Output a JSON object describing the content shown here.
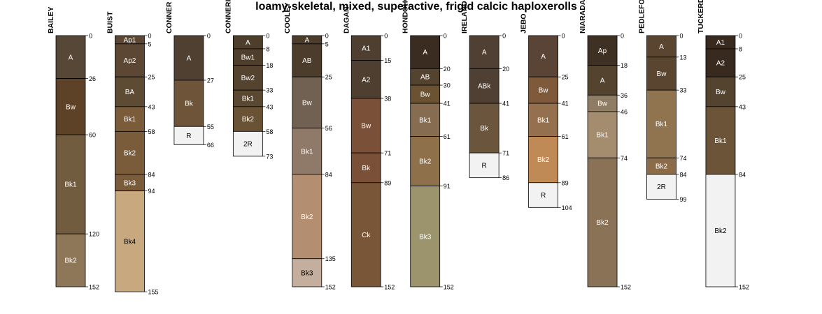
{
  "chart_data": {
    "type": "soil-profile",
    "title": "loamy-skeletal, mixed, superactive, frigid calcic haploxerolls",
    "depth_unit": "cm",
    "profiles": [
      {
        "name": "BAILEY",
        "horizons": [
          {
            "name": "A",
            "top": 0,
            "bottom": 26,
            "color": "#574737"
          },
          {
            "name": "Bw",
            "top": 26,
            "bottom": 60,
            "color": "#5E4227"
          },
          {
            "name": "Bk1",
            "top": 60,
            "bottom": 120,
            "color": "#725C40"
          },
          {
            "name": "Bk2",
            "top": 120,
            "bottom": 152,
            "color": "#8E7759"
          }
        ]
      },
      {
        "name": "BUIST",
        "horizons": [
          {
            "name": "Ap1",
            "top": 0,
            "bottom": 5,
            "color": "#5C4634"
          },
          {
            "name": "Ap2",
            "top": 5,
            "bottom": 25,
            "color": "#5C4634"
          },
          {
            "name": "BA",
            "top": 25,
            "bottom": 43,
            "color": "#5E4B33"
          },
          {
            "name": "Bk1",
            "top": 43,
            "bottom": 58,
            "color": "#7A5C3B"
          },
          {
            "name": "Bk2",
            "top": 58,
            "bottom": 84,
            "color": "#7A5C3B"
          },
          {
            "name": "Bk3",
            "top": 84,
            "bottom": 94,
            "color": "#7A5C3B"
          },
          {
            "name": "Bk4",
            "top": 94,
            "bottom": 155,
            "color": "#C8A87E"
          }
        ]
      },
      {
        "name": "CONNER",
        "horizons": [
          {
            "name": "A",
            "top": 0,
            "bottom": 27,
            "color": "#504032"
          },
          {
            "name": "Bk",
            "top": 27,
            "bottom": 55,
            "color": "#6E5539"
          },
          {
            "name": "R",
            "top": 55,
            "bottom": 66,
            "color": "#F2F2F2"
          }
        ]
      },
      {
        "name": "CONNERIDGE",
        "horizons": [
          {
            "name": "A",
            "top": 0,
            "bottom": 8,
            "color": "#4E3E2C"
          },
          {
            "name": "Bw1",
            "top": 8,
            "bottom": 18,
            "color": "#4E3E2C"
          },
          {
            "name": "Bw2",
            "top": 18,
            "bottom": 33,
            "color": "#54432F"
          },
          {
            "name": "Bk1",
            "top": 33,
            "bottom": 43,
            "color": "#5A4831"
          },
          {
            "name": "Bk2",
            "top": 43,
            "bottom": 58,
            "color": "#6A5235"
          },
          {
            "name": "2R",
            "top": 58,
            "bottom": 73,
            "color": "#F2F2F2"
          }
        ]
      },
      {
        "name": "COOLEY",
        "horizons": [
          {
            "name": "A",
            "top": 0,
            "bottom": 5,
            "color": "#4C3C2C"
          },
          {
            "name": "AB",
            "top": 5,
            "bottom": 25,
            "color": "#4C3C2C"
          },
          {
            "name": "Bw",
            "top": 25,
            "bottom": 56,
            "color": "#716152"
          },
          {
            "name": "Bk1",
            "top": 56,
            "bottom": 84,
            "color": "#8F7A6A"
          },
          {
            "name": "Bk2",
            "top": 84,
            "bottom": 135,
            "color": "#B38E70"
          },
          {
            "name": "Bk3",
            "top": 135,
            "bottom": 152,
            "color": "#C4AE9D"
          }
        ]
      },
      {
        "name": "DAGAN",
        "horizons": [
          {
            "name": "A1",
            "top": 0,
            "bottom": 15,
            "color": "#4E3F30"
          },
          {
            "name": "A2",
            "top": 15,
            "bottom": 38,
            "color": "#4E3F30"
          },
          {
            "name": "Bw",
            "top": 38,
            "bottom": 71,
            "color": "#7A5038"
          },
          {
            "name": "Bk",
            "top": 71,
            "bottom": 89,
            "color": "#7A5038"
          },
          {
            "name": "Ck",
            "top": 89,
            "bottom": 152,
            "color": "#7A5638"
          }
        ]
      },
      {
        "name": "HONDOHO",
        "horizons": [
          {
            "name": "A",
            "top": 0,
            "bottom": 20,
            "color": "#3A2C20"
          },
          {
            "name": "AB",
            "top": 20,
            "bottom": 30,
            "color": "#54442F"
          },
          {
            "name": "Bw",
            "top": 30,
            "bottom": 41,
            "color": "#6A5233"
          },
          {
            "name": "Bk1",
            "top": 41,
            "bottom": 61,
            "color": "#866C50"
          },
          {
            "name": "Bk2",
            "top": 61,
            "bottom": 91,
            "color": "#8E704A"
          },
          {
            "name": "Bk3",
            "top": 91,
            "bottom": 152,
            "color": "#9C946C"
          }
        ]
      },
      {
        "name": "IRELAND",
        "horizons": [
          {
            "name": "A",
            "top": 0,
            "bottom": 20,
            "color": "#4F4033"
          },
          {
            "name": "ABk",
            "top": 20,
            "bottom": 41,
            "color": "#4F4033"
          },
          {
            "name": "Bk",
            "top": 41,
            "bottom": 71,
            "color": "#6B553D"
          },
          {
            "name": "R",
            "top": 71,
            "bottom": 86,
            "color": "#F2F2F2"
          }
        ]
      },
      {
        "name": "JEBO",
        "horizons": [
          {
            "name": "A",
            "top": 0,
            "bottom": 25,
            "color": "#5A4435"
          },
          {
            "name": "Bw",
            "top": 25,
            "bottom": 41,
            "color": "#7E5A3B"
          },
          {
            "name": "Bk1",
            "top": 41,
            "bottom": 61,
            "color": "#94704F"
          },
          {
            "name": "Bk2",
            "top": 61,
            "bottom": 89,
            "color": "#C08A57"
          },
          {
            "name": "R",
            "top": 89,
            "bottom": 104,
            "color": "#F2F2F2"
          }
        ]
      },
      {
        "name": "NIARADA",
        "horizons": [
          {
            "name": "Ap",
            "top": 0,
            "bottom": 18,
            "color": "#3E3022"
          },
          {
            "name": "A",
            "top": 18,
            "bottom": 36,
            "color": "#54442F"
          },
          {
            "name": "Bw",
            "top": 36,
            "bottom": 46,
            "color": "#8E7D64"
          },
          {
            "name": "Bk1",
            "top": 46,
            "bottom": 74,
            "color": "#A48C6E"
          },
          {
            "name": "Bk2",
            "top": 74,
            "bottom": 152,
            "color": "#8A7256"
          }
        ]
      },
      {
        "name": "PEDLEFORD",
        "horizons": [
          {
            "name": "A",
            "top": 0,
            "bottom": 13,
            "color": "#5A4630"
          },
          {
            "name": "Bw",
            "top": 13,
            "bottom": 33,
            "color": "#5A4630"
          },
          {
            "name": "Bk1",
            "top": 33,
            "bottom": 74,
            "color": "#907450"
          },
          {
            "name": "Bk2",
            "top": 74,
            "bottom": 84,
            "color": "#8C6C48"
          },
          {
            "name": "2R",
            "top": 84,
            "bottom": 99,
            "color": "#F2F2F2"
          }
        ]
      },
      {
        "name": "TUCKERDOWNS",
        "horizons": [
          {
            "name": "A1",
            "top": 0,
            "bottom": 8,
            "color": "#392A1F"
          },
          {
            "name": "A2",
            "top": 8,
            "bottom": 25,
            "color": "#392A1F"
          },
          {
            "name": "Bw",
            "top": 25,
            "bottom": 43,
            "color": "#54442F"
          },
          {
            "name": "Bk1",
            "top": 43,
            "bottom": 84,
            "color": "#6C5439"
          },
          {
            "name": "Bk2",
            "top": 84,
            "bottom": 152,
            "color": "#F2F2F2"
          }
        ]
      }
    ]
  }
}
